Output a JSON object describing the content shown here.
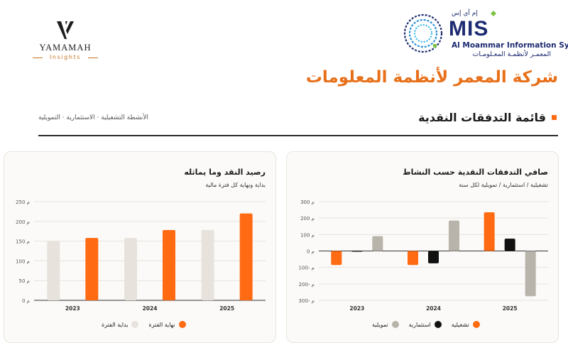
{
  "brand": {
    "yamamah_name": "YAMAMAH",
    "yamamah_sub": "Insights",
    "mis_code_ar": "إم آي إس",
    "mis_word": "MIS",
    "mis_en": "Al Moammar Information Systems",
    "mis_ar": "المعمـر لأنظمـة المعـلومـات"
  },
  "company_name": "شركة المعمر لأنظمة المعلومات",
  "section": {
    "title": "قائمة التدفقات النقدية",
    "note": "الأنشطة التشغيلية · الاستثمارية · التمويلية"
  },
  "colors": {
    "orange": "#ff6a13",
    "black": "#111111",
    "gray": "#b9b4ab",
    "beige": "#e7e3dc",
    "grid": "#e6e3de"
  },
  "chart_data": [
    {
      "type": "bar",
      "title": "رصيد النقد وما يماثله",
      "subtitle": "بداية ونهاية كل فترة مالية",
      "categories": [
        "2023",
        "2024",
        "2025"
      ],
      "series": [
        {
          "name": "بداية الفترة",
          "color": "#e7e3dc",
          "values": [
            150,
            158,
            178
          ]
        },
        {
          "name": "نهاية الفترة",
          "color": "#ff6a13",
          "values": [
            158,
            178,
            220
          ]
        }
      ],
      "ylim": [
        0,
        250
      ],
      "yticks": [
        0,
        50,
        100,
        150,
        200,
        250
      ],
      "ytick_labels": [
        "0 م",
        "50 م",
        "100 م",
        "150 م",
        "200 م",
        "250 م"
      ],
      "grid": true,
      "legend": "bottom"
    },
    {
      "type": "bar",
      "title": "صافي التدفقات النقدية حسب النشاط",
      "subtitle": "تشغيلية / استثمارية / تمويلية لكل سنة",
      "categories": [
        "2023",
        "2024",
        "2025"
      ],
      "series": [
        {
          "name": "تشغيلية",
          "color": "#ff6a13",
          "values": [
            -85,
            -85,
            235
          ]
        },
        {
          "name": "استثمارية",
          "color": "#111111",
          "values": [
            2,
            -75,
            75
          ]
        },
        {
          "name": "تمويلية",
          "color": "#b9b4ab",
          "values": [
            90,
            185,
            -275
          ]
        }
      ],
      "ylim": [
        -300,
        300
      ],
      "yticks": [
        -300,
        -200,
        -100,
        0,
        100,
        200,
        300
      ],
      "ytick_labels": [
        "300- م",
        "200- م",
        "100- م",
        "0 م",
        "100 م",
        "200 م",
        "300 م"
      ],
      "grid": true,
      "legend": "bottom"
    }
  ]
}
